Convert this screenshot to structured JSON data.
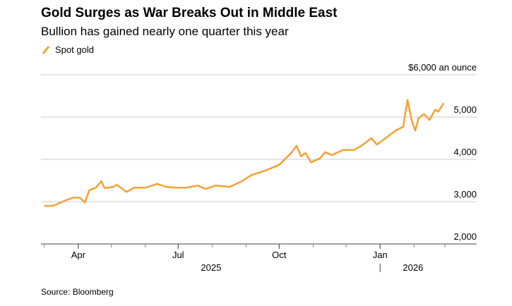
{
  "chart_data": {
    "type": "line",
    "title": "Gold Surges as War Breaks Out in Middle East",
    "subtitle": "Bullion has gained nearly one quarter this year",
    "source": "Source: Bloomberg",
    "x": [
      "2025-03-01",
      "2025-03-09",
      "2025-03-19",
      "2025-03-28",
      "2025-04-03",
      "2025-04-07",
      "2025-04-11",
      "2025-04-17",
      "2025-04-22",
      "2025-04-25",
      "2025-05-03",
      "2025-05-06",
      "2025-05-15",
      "2025-05-22",
      "2025-06-01",
      "2025-06-12",
      "2025-06-20",
      "2025-06-30",
      "2025-07-08",
      "2025-07-19",
      "2025-07-26",
      "2025-08-04",
      "2025-08-17",
      "2025-08-27",
      "2025-09-06",
      "2025-09-18",
      "2025-10-01",
      "2025-10-12",
      "2025-10-17",
      "2025-10-21",
      "2025-10-25",
      "2025-10-30",
      "2025-11-07",
      "2025-11-12",
      "2025-11-18",
      "2025-11-28",
      "2025-12-08",
      "2025-12-15",
      "2025-12-24",
      "2025-12-29",
      "2026-01-06",
      "2026-01-15",
      "2026-01-22",
      "2026-01-26",
      "2026-01-30",
      "2026-02-02",
      "2026-02-05",
      "2026-02-10",
      "2026-02-15",
      "2026-02-20",
      "2026-02-23",
      "2026-02-28"
    ],
    "series": [
      {
        "name": "Spot gold",
        "color": "#f5a033",
        "values": [
          2900,
          2900,
          3015,
          3100,
          3085,
          2980,
          3270,
          3330,
          3480,
          3320,
          3350,
          3400,
          3230,
          3330,
          3330,
          3420,
          3350,
          3330,
          3330,
          3380,
          3300,
          3380,
          3350,
          3470,
          3630,
          3730,
          3870,
          4150,
          4320,
          4070,
          4150,
          3930,
          4020,
          4170,
          4100,
          4220,
          4220,
          4320,
          4500,
          4350,
          4500,
          4680,
          4770,
          5400,
          4900,
          4680,
          4970,
          5070,
          4930,
          5170,
          5130,
          5330
        ]
      }
    ],
    "xlim": [
      "2025-02-26",
      "2026-03-30"
    ],
    "xticks": [
      {
        "value": "2025-04-01",
        "label": "Apr"
      },
      {
        "value": "2025-07-01",
        "label": "Jul"
      },
      {
        "value": "2025-10-01",
        "label": "Oct"
      },
      {
        "value": "2026-01-01",
        "label": "Jan"
      }
    ],
    "xminorticks": [
      "2025-03-01",
      "2025-04-01",
      "2025-05-01",
      "2025-06-01",
      "2025-07-01",
      "2025-08-01",
      "2025-09-01",
      "2025-10-01",
      "2025-11-01",
      "2025-12-01",
      "2026-01-01",
      "2026-02-01",
      "2026-03-01"
    ],
    "year_labels": [
      {
        "value": "2025-07-31",
        "label": "2025"
      },
      {
        "value": "2026-01-31",
        "label": "2026"
      }
    ],
    "year_divider": "2026-01-01",
    "ylim": [
      2000,
      6000
    ],
    "yticks": [
      {
        "value": 2000,
        "label": "2,000"
      },
      {
        "value": 3000,
        "label": "3,000"
      },
      {
        "value": 4000,
        "label": "4,000"
      },
      {
        "value": 5000,
        "label": "5,000"
      },
      {
        "value": 6000,
        "label": "$6,000 an ounce"
      }
    ],
    "grid": true
  }
}
